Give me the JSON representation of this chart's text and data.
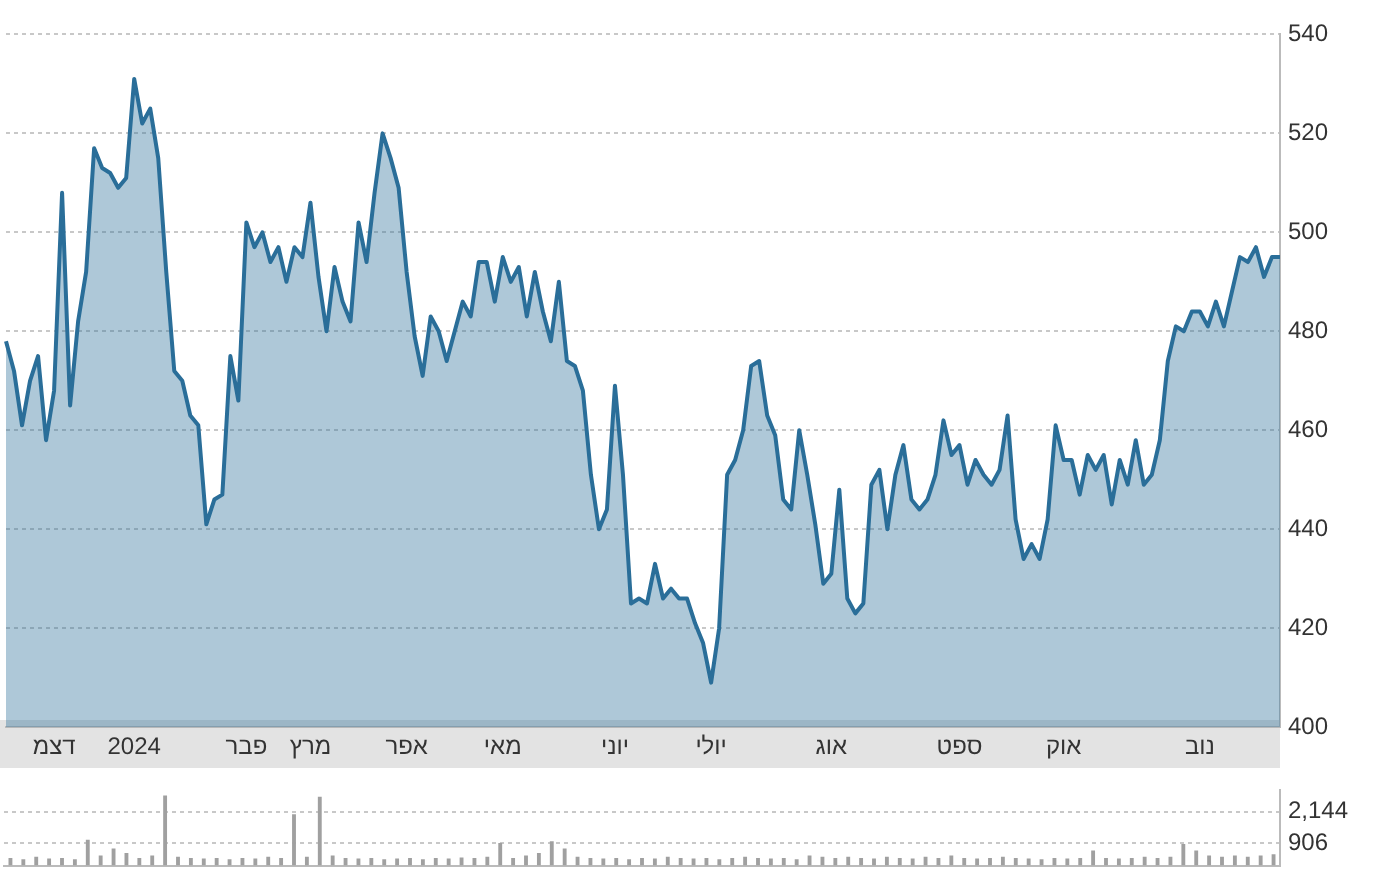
{
  "chart_data": [
    {
      "type": "area",
      "categories": [
        null,
        null,
        null,
        null,
        null,
        null,
        "דצמ",
        null,
        null,
        null,
        null,
        null,
        null,
        null,
        null,
        null,
        "2024",
        null,
        null,
        null,
        null,
        null,
        null,
        null,
        null,
        null,
        null,
        null,
        null,
        null,
        "פבר",
        null,
        null,
        null,
        null,
        null,
        null,
        null,
        "מרץ",
        null,
        null,
        null,
        null,
        null,
        null,
        null,
        null,
        null,
        null,
        null,
        "אפר",
        null,
        null,
        null,
        null,
        null,
        null,
        null,
        null,
        null,
        null,
        null,
        "מאי",
        null,
        null,
        null,
        null,
        null,
        null,
        null,
        null,
        null,
        null,
        null,
        null,
        null,
        "יוני",
        null,
        null,
        null,
        null,
        null,
        null,
        null,
        null,
        null,
        null,
        null,
        "יולי",
        null,
        null,
        null,
        null,
        null,
        null,
        null,
        null,
        null,
        null,
        null,
        null,
        null,
        null,
        "אוג",
        null,
        null,
        null,
        null,
        null,
        null,
        null,
        null,
        null,
        null,
        null,
        null,
        null,
        null,
        null,
        "ספט",
        null,
        null,
        null,
        null,
        null,
        null,
        null,
        null,
        null,
        null,
        null,
        null,
        "אוק",
        null,
        null,
        null,
        null,
        null,
        null,
        null,
        null,
        null,
        null,
        null,
        null,
        null,
        null,
        null,
        null,
        "נוב",
        null,
        null,
        null,
        null,
        null,
        null,
        null,
        null,
        null,
        null
      ],
      "series": [
        {
          "color": "#2a6e99",
          "values": [
            478,
            472,
            461,
            470,
            475,
            458,
            468,
            508,
            465,
            482,
            492,
            517,
            513,
            512,
            509,
            511,
            531,
            522,
            525,
            515,
            492,
            472,
            470,
            463,
            461,
            441,
            446,
            447,
            475,
            466,
            502,
            497,
            500,
            494,
            497,
            490,
            497,
            495,
            506,
            491,
            480,
            493,
            486,
            482,
            502,
            494,
            508,
            520,
            515,
            509,
            492,
            479,
            471,
            483,
            480,
            474,
            480,
            486,
            483,
            494,
            494,
            486,
            495,
            490,
            493,
            483,
            492,
            484,
            478,
            490,
            474,
            473,
            468,
            451,
            440,
            444,
            469,
            451,
            425,
            426,
            425,
            433,
            426,
            428,
            426,
            426,
            421,
            417,
            409,
            420,
            451,
            454,
            460,
            473,
            474,
            463,
            459,
            446,
            444,
            460,
            451,
            441,
            429,
            431,
            448,
            426,
            423,
            425,
            449,
            452,
            440,
            451,
            457,
            446,
            444,
            446,
            451,
            462,
            455,
            457,
            449,
            454,
            451,
            449,
            452,
            463,
            442,
            434,
            437,
            434,
            442,
            461,
            454,
            454,
            447,
            455,
            452,
            455,
            445,
            454,
            449,
            458,
            449,
            451,
            458,
            474,
            481,
            480,
            484,
            484,
            481,
            486,
            481,
            488,
            495,
            494,
            497,
            491,
            495,
            495
          ]
        }
      ],
      "ylim": [
        400,
        540
      ],
      "yticks": [
        400,
        420,
        440,
        460,
        480,
        500,
        520,
        540
      ],
      "grid": "y"
    },
    {
      "type": "bar",
      "categories": [
        null,
        null,
        null,
        null,
        null,
        null,
        null,
        null,
        null,
        null,
        null,
        null,
        null,
        null,
        null,
        null,
        null,
        null,
        null,
        null,
        null,
        null,
        null,
        null,
        null,
        null,
        null,
        null,
        null,
        null,
        null,
        null,
        null,
        null,
        null,
        null,
        null,
        null,
        null,
        null,
        null,
        null,
        null,
        null,
        null,
        null,
        null,
        null,
        null,
        null,
        null,
        null,
        null,
        null,
        null,
        null,
        null,
        null,
        null,
        null,
        null,
        null,
        null,
        null,
        null,
        null,
        null,
        null,
        null,
        null,
        null,
        null,
        null,
        null,
        null,
        null,
        null,
        null,
        null,
        null,
        null,
        null,
        null,
        null,
        null,
        null,
        null,
        null,
        null,
        null,
        null,
        null,
        null,
        null,
        null,
        null,
        null,
        null,
        null
      ],
      "values": [
        300,
        250,
        350,
        280,
        300,
        250,
        1030,
        400,
        680,
        500,
        300,
        400,
        2800,
        350,
        300,
        280,
        300,
        250,
        300,
        280,
        350,
        300,
        2050,
        350,
        2750,
        400,
        300,
        280,
        300,
        250,
        280,
        300,
        250,
        300,
        280,
        320,
        300,
        350,
        900,
        300,
        400,
        500,
        970,
        680,
        350,
        300,
        280,
        300,
        250,
        300,
        280,
        350,
        300,
        280,
        300,
        250,
        300,
        350,
        300,
        280,
        300,
        250,
        400,
        350,
        300,
        350,
        300,
        280,
        350,
        300,
        280,
        350,
        300,
        400,
        300,
        280,
        300,
        350,
        300,
        280,
        250,
        300,
        280,
        300,
        600,
        300,
        280,
        300,
        350,
        300,
        350,
        860,
        600,
        400,
        350,
        400,
        350,
        400,
        450
      ],
      "color": "#a0a0a0",
      "ylim": [
        0,
        3000
      ],
      "yticks": [
        {
          "value": 906,
          "label": "906"
        },
        {
          "value": 2144,
          "label": "2,144"
        }
      ],
      "grid": "y",
      "tick_labels": "y"
    }
  ]
}
